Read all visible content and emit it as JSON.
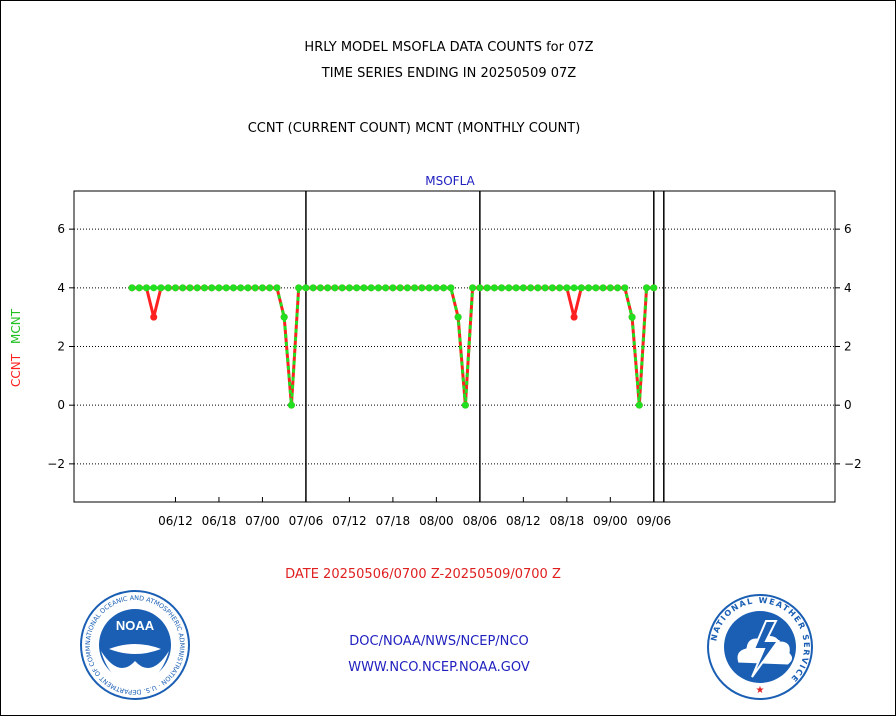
{
  "header": {
    "title_line1": "HRLY MODEL MSOFLA DATA COUNTS for 07Z",
    "title_line2": "TIME SERIES ENDING IN 20250509 07Z",
    "subtitle": "CCNT (CURRENT COUNT) MCNT (MONTHLY COUNT)"
  },
  "date_range": "DATE 20250506/0700 Z-20250509/0700 Z",
  "footer": {
    "line1": "DOC/NOAA/NWS/NCEP/NCO",
    "line2": "WWW.NCO.NCEP.NOAA.GOV"
  },
  "logos": {
    "noaa_text": "NOAA",
    "noaa_ring": "NATIONAL OCEANIC AND ATMOSPHERIC ADMINISTRATION · U.S. DEPARTMENT OF COMMERCE ·",
    "nws_ring": "NATIONAL WEATHER SERVICE",
    "noaa_color": "#1a5fb4",
    "nws_color": "#1a5fb4"
  },
  "chart_data": {
    "type": "line",
    "title": "MSOFLA",
    "ylabel_ccnt": "CCNT",
    "ylabel_mcnt": "MCNT",
    "ylim": [
      -3.3,
      7.3
    ],
    "yticks": [
      -2,
      0,
      2,
      4,
      6
    ],
    "grid": "horizontal dotted",
    "x_range": [
      -8,
      97
    ],
    "xtick_labels": [
      "06/12",
      "06/18",
      "07/00",
      "07/06",
      "07/12",
      "07/18",
      "08/00",
      "08/06",
      "08/12",
      "08/18",
      "09/00",
      "09/06"
    ],
    "xtick_positions": [
      6,
      12,
      18,
      24,
      30,
      36,
      42,
      48,
      54,
      60,
      66,
      72
    ],
    "day_boundaries": [
      24,
      48,
      72
    ],
    "x_start": 0,
    "x_end": 72,
    "series": [
      {
        "name": "CCNT",
        "color": "#ff2020",
        "values": [
          4,
          4,
          4,
          3,
          4,
          4,
          4,
          4,
          4,
          4,
          4,
          4,
          4,
          4,
          4,
          4,
          4,
          4,
          4,
          4,
          4,
          3,
          0,
          4,
          4,
          4,
          4,
          4,
          4,
          4,
          4,
          4,
          4,
          4,
          4,
          4,
          4,
          4,
          4,
          4,
          4,
          4,
          4,
          4,
          4,
          3,
          0,
          4,
          4,
          4,
          4,
          4,
          4,
          4,
          4,
          4,
          4,
          4,
          4,
          4,
          4,
          3,
          4,
          4,
          4,
          4,
          4,
          4,
          4,
          3,
          0,
          4,
          4
        ]
      },
      {
        "name": "MCNT",
        "color": "#20e020",
        "values": [
          4,
          4,
          4,
          4,
          4,
          4,
          4,
          4,
          4,
          4,
          4,
          4,
          4,
          4,
          4,
          4,
          4,
          4,
          4,
          4,
          4,
          3,
          0,
          4,
          4,
          4,
          4,
          4,
          4,
          4,
          4,
          4,
          4,
          4,
          4,
          4,
          4,
          4,
          4,
          4,
          4,
          4,
          4,
          4,
          4,
          3,
          0,
          4,
          4,
          4,
          4,
          4,
          4,
          4,
          4,
          4,
          4,
          4,
          4,
          4,
          4,
          4,
          4,
          4,
          4,
          4,
          4,
          4,
          4,
          3,
          0,
          4,
          4
        ]
      }
    ]
  }
}
